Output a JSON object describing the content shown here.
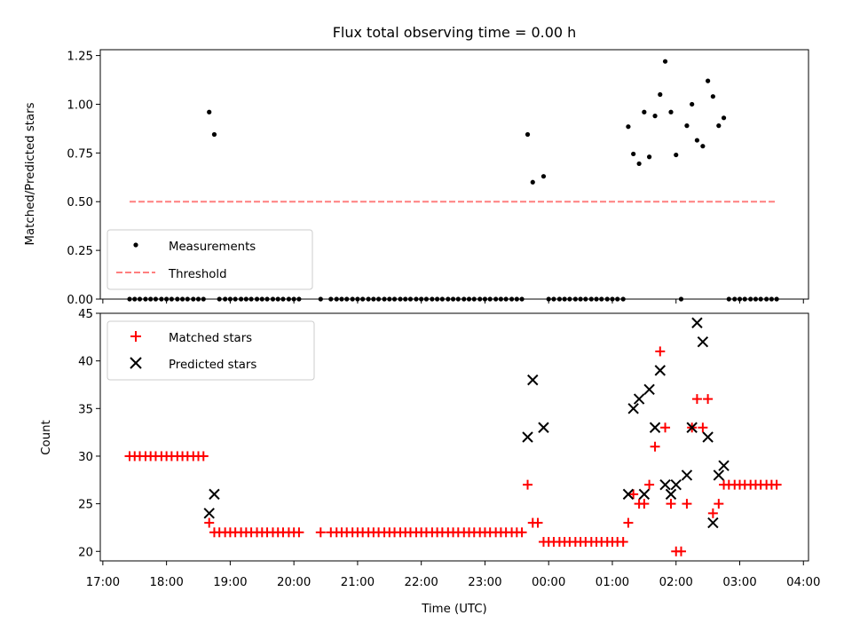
{
  "chart_data": [
    {
      "type": "scatter",
      "title": "Flux total observing time = 0.00 h",
      "xlabel": "",
      "ylabel": "Matched/Predicted stars",
      "ylim": [
        0,
        1.28
      ],
      "yticks": [
        "0.00",
        "0.25",
        "0.50",
        "0.75",
        "1.00",
        "1.25"
      ],
      "ytick_values": [
        0,
        0.25,
        0.5,
        0.75,
        1.0,
        1.25
      ],
      "x_unit": "hours after 17:00 UTC",
      "xlim": [
        -0.04,
        11.08
      ],
      "legend": "lower-left",
      "series": [
        {
          "name": "Measurements",
          "marker": "dot",
          "color": "#000000",
          "points": [
            [
              0.42,
              0
            ],
            [
              0.5,
              0
            ],
            [
              0.58,
              0
            ],
            [
              0.67,
              0
            ],
            [
              0.75,
              0
            ],
            [
              0.83,
              0
            ],
            [
              0.92,
              0
            ],
            [
              1.0,
              0
            ],
            [
              1.08,
              0
            ],
            [
              1.17,
              0
            ],
            [
              1.25,
              0
            ],
            [
              1.33,
              0
            ],
            [
              1.42,
              0
            ],
            [
              1.5,
              0
            ],
            [
              1.58,
              0
            ],
            [
              1.67,
              0.96
            ],
            [
              1.75,
              0.845
            ],
            [
              1.83,
              0
            ],
            [
              1.92,
              0
            ],
            [
              2.0,
              0
            ],
            [
              2.08,
              0
            ],
            [
              2.17,
              0
            ],
            [
              2.25,
              0
            ],
            [
              2.33,
              0
            ],
            [
              2.42,
              0
            ],
            [
              2.5,
              0
            ],
            [
              2.58,
              0
            ],
            [
              2.67,
              0
            ],
            [
              2.75,
              0
            ],
            [
              2.83,
              0
            ],
            [
              2.92,
              0
            ],
            [
              3.0,
              0
            ],
            [
              3.08,
              0
            ],
            [
              3.42,
              0
            ],
            [
              3.58,
              0
            ],
            [
              3.67,
              0
            ],
            [
              3.75,
              0
            ],
            [
              3.83,
              0
            ],
            [
              3.92,
              0
            ],
            [
              4.0,
              0
            ],
            [
              4.08,
              0
            ],
            [
              4.17,
              0
            ],
            [
              4.25,
              0
            ],
            [
              4.33,
              0
            ],
            [
              4.42,
              0
            ],
            [
              4.5,
              0
            ],
            [
              4.58,
              0
            ],
            [
              4.67,
              0
            ],
            [
              4.75,
              0
            ],
            [
              4.83,
              0
            ],
            [
              4.92,
              0
            ],
            [
              5.0,
              0
            ],
            [
              5.08,
              0
            ],
            [
              5.17,
              0
            ],
            [
              5.25,
              0
            ],
            [
              5.33,
              0
            ],
            [
              5.42,
              0
            ],
            [
              5.5,
              0
            ],
            [
              5.58,
              0
            ],
            [
              5.67,
              0
            ],
            [
              5.75,
              0
            ],
            [
              5.83,
              0
            ],
            [
              5.92,
              0
            ],
            [
              6.0,
              0
            ],
            [
              6.08,
              0
            ],
            [
              6.17,
              0
            ],
            [
              6.25,
              0
            ],
            [
              6.33,
              0
            ],
            [
              6.42,
              0
            ],
            [
              6.5,
              0
            ],
            [
              6.58,
              0
            ],
            [
              6.67,
              0.845
            ],
            [
              6.75,
              0.6
            ],
            [
              6.92,
              0.63
            ],
            [
              7.0,
              0
            ],
            [
              7.08,
              0
            ],
            [
              7.17,
              0
            ],
            [
              7.25,
              0
            ],
            [
              7.33,
              0
            ],
            [
              7.42,
              0
            ],
            [
              7.5,
              0
            ],
            [
              7.58,
              0
            ],
            [
              7.67,
              0
            ],
            [
              7.75,
              0
            ],
            [
              7.83,
              0
            ],
            [
              7.92,
              0
            ],
            [
              8.0,
              0
            ],
            [
              8.08,
              0
            ],
            [
              8.17,
              0
            ],
            [
              8.25,
              0.885
            ],
            [
              8.33,
              0.745
            ],
            [
              8.42,
              0.695
            ],
            [
              8.5,
              0.96
            ],
            [
              8.58,
              0.73
            ],
            [
              8.67,
              0.94
            ],
            [
              8.75,
              1.05
            ],
            [
              8.83,
              1.22
            ],
            [
              8.92,
              0.96
            ],
            [
              9.0,
              0.74
            ],
            [
              9.08,
              0
            ],
            [
              9.17,
              0.89
            ],
            [
              9.25,
              1.0
            ],
            [
              9.33,
              0.815
            ],
            [
              9.42,
              0.785
            ],
            [
              9.5,
              1.12
            ],
            [
              9.58,
              1.04
            ],
            [
              9.67,
              0.89
            ],
            [
              9.75,
              0.93
            ],
            [
              9.83,
              0
            ],
            [
              9.92,
              0
            ],
            [
              10.0,
              0
            ],
            [
              10.08,
              0
            ],
            [
              10.17,
              0
            ],
            [
              10.25,
              0
            ],
            [
              10.33,
              0
            ],
            [
              10.42,
              0
            ],
            [
              10.5,
              0
            ],
            [
              10.58,
              0
            ]
          ]
        },
        {
          "name": "Threshold",
          "marker": "dashed-line",
          "color": "#ff7f7f",
          "points": [
            [
              0.42,
              0.5
            ],
            [
              10.58,
              0.5
            ]
          ]
        }
      ]
    },
    {
      "type": "scatter",
      "title": "",
      "xlabel": "Time (UTC)",
      "ylabel": "Count",
      "ylim": [
        19,
        45
      ],
      "yticks": [
        "20",
        "25",
        "30",
        "35",
        "40",
        "45"
      ],
      "ytick_values": [
        20,
        25,
        30,
        35,
        40,
        45
      ],
      "xticks": [
        "17:00",
        "18:00",
        "19:00",
        "20:00",
        "21:00",
        "22:00",
        "23:00",
        "00:00",
        "01:00",
        "02:00",
        "03:00",
        "04:00"
      ],
      "xtick_values": [
        0,
        1,
        2,
        3,
        4,
        5,
        6,
        7,
        8,
        9,
        10,
        11
      ],
      "x_unit": "hours after 17:00 UTC",
      "xlim": [
        -0.04,
        11.08
      ],
      "legend": "top-left",
      "series": [
        {
          "name": "Matched stars",
          "marker": "plus",
          "color": "#ff0000",
          "points": [
            [
              0.42,
              30
            ],
            [
              0.5,
              30
            ],
            [
              0.58,
              30
            ],
            [
              0.67,
              30
            ],
            [
              0.75,
              30
            ],
            [
              0.83,
              30
            ],
            [
              0.92,
              30
            ],
            [
              1.0,
              30
            ],
            [
              1.08,
              30
            ],
            [
              1.17,
              30
            ],
            [
              1.25,
              30
            ],
            [
              1.33,
              30
            ],
            [
              1.42,
              30
            ],
            [
              1.5,
              30
            ],
            [
              1.58,
              30
            ],
            [
              1.67,
              23
            ],
            [
              1.75,
              22
            ],
            [
              1.83,
              22
            ],
            [
              1.92,
              22
            ],
            [
              2.0,
              22
            ],
            [
              2.08,
              22
            ],
            [
              2.17,
              22
            ],
            [
              2.25,
              22
            ],
            [
              2.33,
              22
            ],
            [
              2.42,
              22
            ],
            [
              2.5,
              22
            ],
            [
              2.58,
              22
            ],
            [
              2.67,
              22
            ],
            [
              2.75,
              22
            ],
            [
              2.83,
              22
            ],
            [
              2.92,
              22
            ],
            [
              3.0,
              22
            ],
            [
              3.08,
              22
            ],
            [
              3.42,
              22
            ],
            [
              3.58,
              22
            ],
            [
              3.67,
              22
            ],
            [
              3.75,
              22
            ],
            [
              3.83,
              22
            ],
            [
              3.92,
              22
            ],
            [
              4.0,
              22
            ],
            [
              4.08,
              22
            ],
            [
              4.17,
              22
            ],
            [
              4.25,
              22
            ],
            [
              4.33,
              22
            ],
            [
              4.42,
              22
            ],
            [
              4.5,
              22
            ],
            [
              4.58,
              22
            ],
            [
              4.67,
              22
            ],
            [
              4.75,
              22
            ],
            [
              4.83,
              22
            ],
            [
              4.92,
              22
            ],
            [
              5.0,
              22
            ],
            [
              5.08,
              22
            ],
            [
              5.17,
              22
            ],
            [
              5.25,
              22
            ],
            [
              5.33,
              22
            ],
            [
              5.42,
              22
            ],
            [
              5.5,
              22
            ],
            [
              5.58,
              22
            ],
            [
              5.67,
              22
            ],
            [
              5.75,
              22
            ],
            [
              5.83,
              22
            ],
            [
              5.92,
              22
            ],
            [
              6.0,
              22
            ],
            [
              6.08,
              22
            ],
            [
              6.17,
              22
            ],
            [
              6.25,
              22
            ],
            [
              6.33,
              22
            ],
            [
              6.42,
              22
            ],
            [
              6.5,
              22
            ],
            [
              6.58,
              22
            ],
            [
              6.67,
              27
            ],
            [
              6.75,
              23
            ],
            [
              6.83,
              23
            ],
            [
              6.92,
              21
            ],
            [
              7.0,
              21
            ],
            [
              7.08,
              21
            ],
            [
              7.17,
              21
            ],
            [
              7.25,
              21
            ],
            [
              7.33,
              21
            ],
            [
              7.42,
              21
            ],
            [
              7.5,
              21
            ],
            [
              7.58,
              21
            ],
            [
              7.67,
              21
            ],
            [
              7.75,
              21
            ],
            [
              7.83,
              21
            ],
            [
              7.92,
              21
            ],
            [
              8.0,
              21
            ],
            [
              8.08,
              21
            ],
            [
              8.17,
              21
            ],
            [
              8.25,
              23
            ],
            [
              8.33,
              26
            ],
            [
              8.42,
              25
            ],
            [
              8.5,
              25
            ],
            [
              8.58,
              27
            ],
            [
              8.67,
              31
            ],
            [
              8.75,
              41
            ],
            [
              8.83,
              33
            ],
            [
              8.92,
              25
            ],
            [
              9.0,
              20
            ],
            [
              9.08,
              20
            ],
            [
              9.17,
              25
            ],
            [
              9.25,
              33
            ],
            [
              9.33,
              36
            ],
            [
              9.42,
              33
            ],
            [
              9.5,
              36
            ],
            [
              9.58,
              24
            ],
            [
              9.67,
              25
            ],
            [
              9.75,
              27
            ],
            [
              9.83,
              27
            ],
            [
              9.92,
              27
            ],
            [
              10.0,
              27
            ],
            [
              10.08,
              27
            ],
            [
              10.17,
              27
            ],
            [
              10.25,
              27
            ],
            [
              10.33,
              27
            ],
            [
              10.42,
              27
            ],
            [
              10.5,
              27
            ],
            [
              10.58,
              27
            ]
          ]
        },
        {
          "name": "Predicted stars",
          "marker": "x",
          "color": "#000000",
          "points": [
            [
              1.67,
              24
            ],
            [
              1.75,
              26
            ],
            [
              6.67,
              32
            ],
            [
              6.75,
              38
            ],
            [
              6.92,
              33
            ],
            [
              8.25,
              26
            ],
            [
              8.33,
              35
            ],
            [
              8.42,
              36
            ],
            [
              8.5,
              26
            ],
            [
              8.58,
              37
            ],
            [
              8.67,
              33
            ],
            [
              8.75,
              39
            ],
            [
              8.83,
              27
            ],
            [
              8.92,
              26
            ],
            [
              9.0,
              27
            ],
            [
              9.17,
              28
            ],
            [
              9.25,
              33
            ],
            [
              9.33,
              44
            ],
            [
              9.42,
              42
            ],
            [
              9.5,
              32
            ],
            [
              9.58,
              23
            ],
            [
              9.67,
              28
            ],
            [
              9.75,
              29
            ]
          ]
        }
      ]
    }
  ]
}
